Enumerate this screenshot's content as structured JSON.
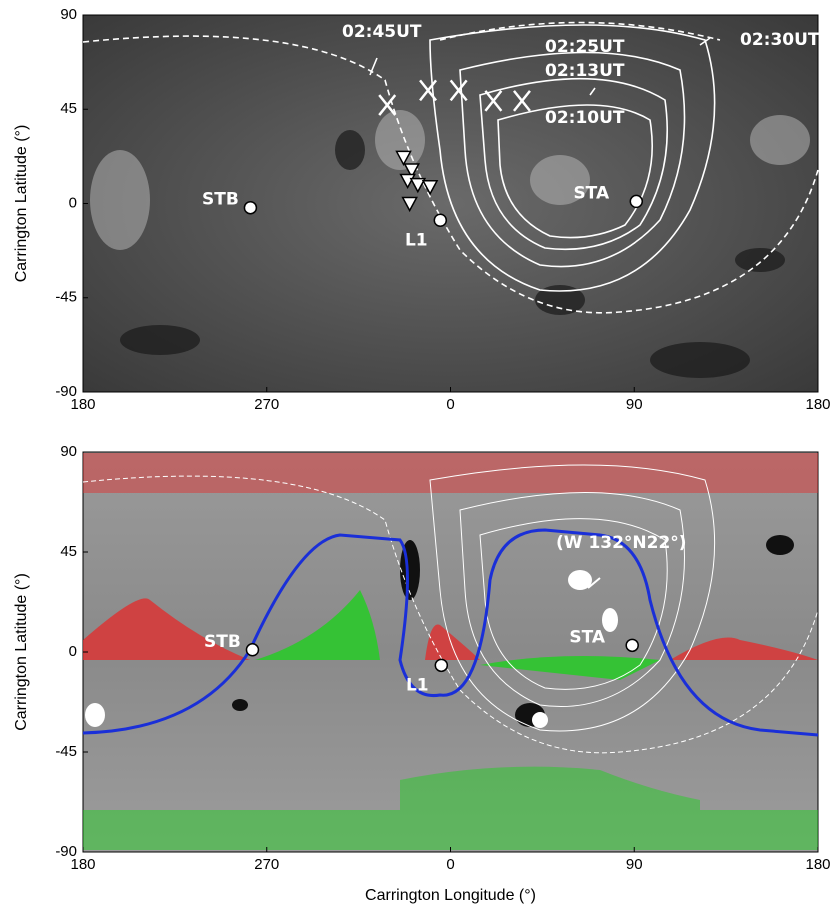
{
  "chart_data": [
    {
      "type": "map",
      "ylabel": "Carrington Latitude (°)",
      "xlim": [
        180,
        540
      ],
      "xticks": [
        {
          "value": 180,
          "label": "180"
        },
        {
          "value": 270,
          "label": "270"
        },
        {
          "value": 360,
          "label": "0"
        },
        {
          "value": 450,
          "label": "90"
        },
        {
          "value": 540,
          "label": "180"
        }
      ],
      "ylim": [
        -90,
        90
      ],
      "yticks": [
        -90,
        -45,
        0,
        45,
        90
      ],
      "points": [
        {
          "name": "STB",
          "x": 262,
          "y": -2
        },
        {
          "name": "L1",
          "x": 355,
          "y": -8
        },
        {
          "name": "STA",
          "x": 451,
          "y": 1
        }
      ],
      "x_marks": {
        "x": [
          329,
          349,
          364,
          381,
          395
        ],
        "y": [
          47,
          54,
          54,
          49,
          49
        ]
      },
      "triangles": {
        "x": [
          337,
          341,
          339,
          344,
          350,
          340
        ],
        "y": [
          22,
          16,
          11,
          9,
          8,
          0
        ]
      },
      "annotations": [
        "02:45UT",
        "02:25UT",
        "02:13UT",
        "02:10UT",
        "02:30UT"
      ]
    },
    {
      "type": "map",
      "ylabel": "Carrington Latitude (°)",
      "xlabel": "Carrington Longitude (°)",
      "xlim": [
        180,
        540
      ],
      "xticks": [
        {
          "value": 180,
          "label": "180"
        },
        {
          "value": 270,
          "label": "270"
        },
        {
          "value": 360,
          "label": "0"
        },
        {
          "value": 450,
          "label": "90"
        },
        {
          "value": 540,
          "label": "180"
        }
      ],
      "ylim": [
        -90,
        90
      ],
      "yticks": [
        -90,
        -45,
        0,
        45,
        90
      ],
      "points": [
        {
          "name": "STB",
          "x": 263,
          "y": 1
        },
        {
          "name": "L1",
          "x": 355.5,
          "y": -6
        },
        {
          "name": "STA",
          "x": 449,
          "y": 3
        }
      ],
      "annotations": [
        "(W 132°N22°)"
      ]
    }
  ]
}
